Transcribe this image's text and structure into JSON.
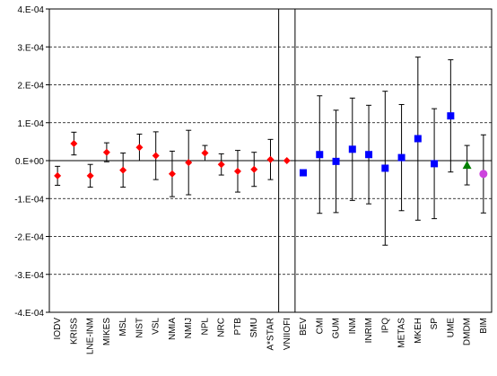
{
  "chart_data": {
    "type": "scatter",
    "title": "",
    "xlabel": "",
    "ylabel": "",
    "ylim": [
      -0.0004,
      0.0004
    ],
    "y_ticks": [
      "4.E-04",
      "3.E-04",
      "2.E-04",
      "1.E-04",
      "0.E+00",
      "-1.E-04",
      "-2.E-04",
      "-3.E-04",
      "-4.E-04"
    ],
    "y_tick_values": [
      0.0004,
      0.0003,
      0.0002,
      0.0001,
      0,
      -0.0001,
      -0.0002,
      -0.0003,
      -0.0004
    ],
    "grid": "horizontal dashed",
    "categories": [
      "IODV",
      "KRISS",
      "LNE-INM",
      "MIKES",
      "MSL",
      "NIST",
      "VSL",
      "NMIA",
      "NMIJ",
      "NPL",
      "NRC",
      "PTB",
      "SMU",
      "A*STAR",
      "VNIIOFI",
      "BEV",
      "CMI",
      "GUM",
      "INM",
      "INRIM",
      "IPQ",
      "METAS",
      "MKEH",
      "SP",
      "UME",
      "DMDM",
      "BIM"
    ],
    "separators_after": [
      "A*STAR",
      "VNIIOFI"
    ],
    "series": [
      {
        "color": "#ff0000",
        "marker": "diamond",
        "points": [
          {
            "label": "IODV",
            "y": -4e-05,
            "err": 2.5e-05
          },
          {
            "label": "KRISS",
            "y": 4.5e-05,
            "err": 3e-05
          },
          {
            "label": "LNE-INM",
            "y": -4e-05,
            "err": 3e-05
          },
          {
            "label": "MIKES",
            "y": 2.2e-05,
            "err": 2.5e-05
          },
          {
            "label": "MSL",
            "y": -2.5e-05,
            "err": 4.5e-05
          },
          {
            "label": "NIST",
            "y": 3.5e-05,
            "err": 3.5e-05
          },
          {
            "label": "VSL",
            "y": 1.3e-05,
            "err": 6.3e-05
          },
          {
            "label": "NMIA",
            "y": -3.5e-05,
            "err": 6e-05
          },
          {
            "label": "NMIJ",
            "y": -5e-06,
            "err": 8.5e-05
          },
          {
            "label": "NPL",
            "y": 2e-05,
            "err": 2e-05
          },
          {
            "label": "NRC",
            "y": -1e-05,
            "err": 2.8e-05
          },
          {
            "label": "PTB",
            "y": -2.8e-05,
            "err": 5.5e-05
          },
          {
            "label": "SMU",
            "y": -2.3e-05,
            "err": 4.5e-05
          },
          {
            "label": "A*STAR",
            "y": 3e-06,
            "err": 5.3e-05
          },
          {
            "label": "VNIIOFI",
            "y": 0.0,
            "err": 0.0
          }
        ]
      },
      {
        "color": "#0000ff",
        "marker": "square",
        "points": [
          {
            "label": "BEV",
            "y": -3.2e-05,
            "err": 0.0
          },
          {
            "label": "CMI",
            "y": 1.6e-05,
            "err": 0.000155
          },
          {
            "label": "GUM",
            "y": -2e-06,
            "err": 0.000135
          },
          {
            "label": "INM",
            "y": 3e-05,
            "err": 0.000135
          },
          {
            "label": "INRIM",
            "y": 1.6e-05,
            "err": 0.00013
          },
          {
            "label": "IPQ",
            "y": -2e-05,
            "err": 0.000203
          },
          {
            "label": "METAS",
            "y": 8e-06,
            "err": 0.00014
          },
          {
            "label": "MKEH",
            "y": 5.8e-05,
            "err": 0.000215
          },
          {
            "label": "SP",
            "y": -8e-06,
            "err": 0.000145
          },
          {
            "label": "UME",
            "y": 0.000118,
            "err": 0.000148
          }
        ]
      },
      {
        "color": "#008000",
        "marker": "triangle",
        "points": [
          {
            "label": "DMDM",
            "y": -1.2e-05,
            "err": 5.2e-05
          }
        ]
      },
      {
        "color": "#cc44dd",
        "marker": "circle",
        "points": [
          {
            "label": "BIM",
            "y": -3.5e-05,
            "err": 0.000103
          }
        ]
      }
    ]
  }
}
